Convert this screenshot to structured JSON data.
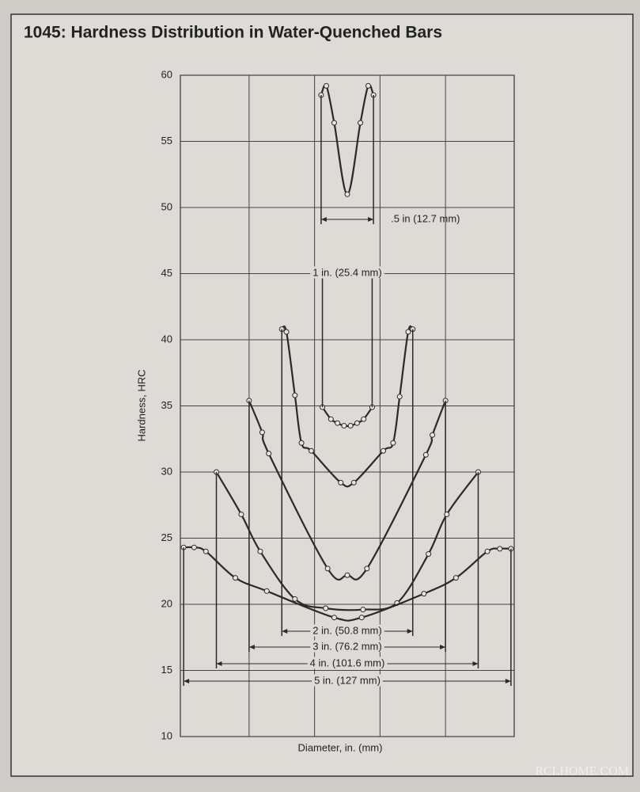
{
  "chart_data": {
    "type": "line",
    "title": "1045: Hardness Distribution in Water-Quenched Bars",
    "xlabel": "Diameter, in. (mm)",
    "ylabel": "Hardness, HRC",
    "watermark": "RCLHOME.COM",
    "ylim": [
      10,
      60
    ],
    "yticks": [
      10,
      15,
      20,
      25,
      30,
      35,
      40,
      45,
      50,
      55,
      60
    ],
    "xlim": [
      -2.55,
      2.55
    ],
    "xgrid": [
      -1.5,
      -0.5,
      0.5,
      1.5
    ],
    "grid": true,
    "color": "#2a2a2a",
    "series": [
      {
        "name": ".5 in (12.7 mm)",
        "x": [
          -0.4,
          -0.32,
          -0.2,
          0,
          0.2,
          0.32,
          0.4
        ],
        "values": [
          58.5,
          59.2,
          56.4,
          51,
          56.4,
          59.2,
          58.5
        ]
      },
      {
        "name": "1 in. (25.4 mm)",
        "x": [
          -0.38,
          -0.25,
          -0.15,
          -0.05,
          0.05,
          0.15,
          0.25,
          0.38
        ],
        "values": [
          34.9,
          34,
          33.7,
          33.5,
          33.5,
          33.7,
          34,
          34.9
        ]
      },
      {
        "name": "2 in. (50.8 mm)",
        "x": [
          -1.0,
          -0.93,
          -0.8,
          -0.7,
          -0.55,
          -0.1,
          0.1,
          0.55,
          0.7,
          0.8,
          0.93,
          1.0
        ],
        "values": [
          40.8,
          40.6,
          35.8,
          32.2,
          31.6,
          29.2,
          29.2,
          31.6,
          32.2,
          35.7,
          40.6,
          40.8
        ]
      },
      {
        "name": "3 in. (76.2 mm)",
        "x": [
          -1.5,
          -1.3,
          -1.2,
          -0.3,
          0,
          0.3,
          1.2,
          1.3,
          1.5
        ],
        "values": [
          35.4,
          33,
          31.4,
          22.7,
          22.2,
          22.7,
          31.3,
          32.8,
          35.4
        ]
      },
      {
        "name": "4 in. (101.6 mm)",
        "x": [
          -2.0,
          -1.62,
          -1.33,
          -0.8,
          -0.33,
          0.24,
          0.76,
          1.24,
          1.52,
          2.0
        ],
        "values": [
          30,
          26.8,
          24,
          20.4,
          19.7,
          19.6,
          20.1,
          23.8,
          26.8,
          30
        ]
      },
      {
        "name": "5 in. (127 mm)",
        "x": [
          -2.5,
          -2.34,
          -2.16,
          -1.71,
          -1.23,
          -0.2,
          0.22,
          1.17,
          1.66,
          2.14,
          2.33,
          2.5
        ],
        "values": [
          24.3,
          24.3,
          24,
          22,
          21,
          19,
          19,
          20.8,
          22,
          24,
          24.2,
          24.2
        ]
      }
    ]
  }
}
